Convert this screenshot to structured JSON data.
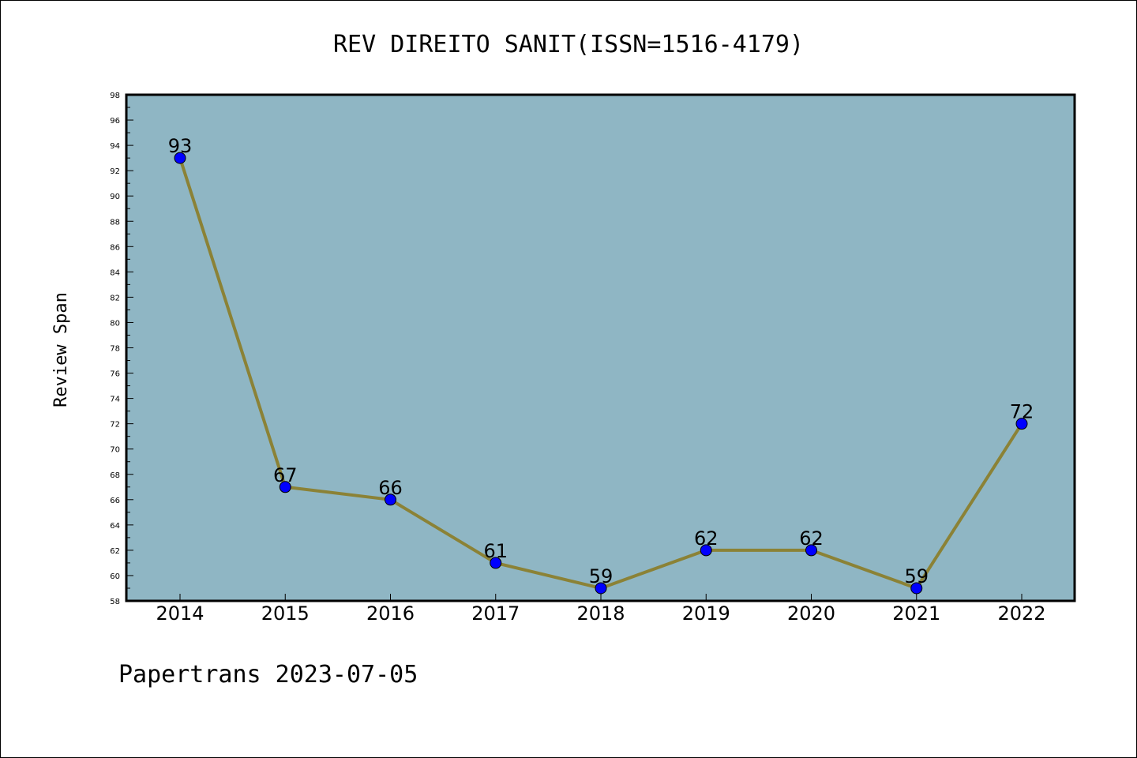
{
  "chart_data": {
    "type": "line",
    "title": "REV DIREITO SANIT(ISSN=1516-4179)",
    "xlabel": "",
    "ylabel": "Review Span",
    "categories": [
      "2014",
      "2015",
      "2016",
      "2017",
      "2018",
      "2019",
      "2020",
      "2021",
      "2022"
    ],
    "series": [
      {
        "values": [
          93,
          67,
          66,
          61,
          59,
          62,
          62,
          59,
          72
        ],
        "line_color": "#8b8236",
        "marker_color": "#0000ff"
      }
    ],
    "ylim": [
      58,
      98
    ],
    "y_tick_step": 2,
    "grid": false,
    "plot_background": "#8fb6c4",
    "data_labels": true
  },
  "footer": "Papertrans 2023-07-05"
}
